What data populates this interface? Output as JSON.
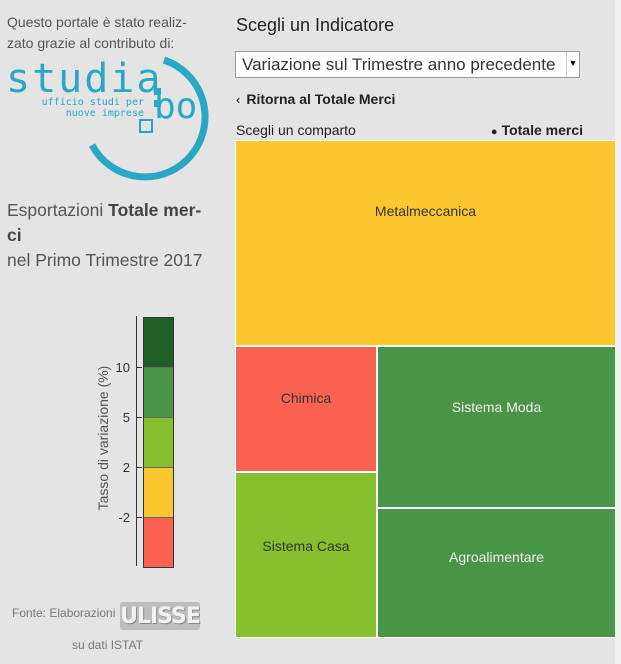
{
  "credit": {
    "line1": "Questo portale è stato realiz-",
    "line2": "zato grazie al contributo di:"
  },
  "logo": {
    "word": "studia",
    "suffix": "bo",
    "sub1": "ufficio studi per",
    "sub2": "nuove imprese",
    "color": "#2aa7c4"
  },
  "title": {
    "prefix": "Esportazioni ",
    "bold1": "Totale mer-",
    "bold2": "ci",
    "line3": "nel Primo Trimestre 2017"
  },
  "legend": {
    "axis_label": "Tasso di variazione (%)",
    "ticks": [
      "10",
      "5",
      "2",
      "-2"
    ],
    "colors": [
      "#1f5e24",
      "#4a9448",
      "#86c02e",
      "#fdc82f",
      "#fb6350"
    ]
  },
  "source": {
    "prefix": "Fonte: Elaborazioni",
    "brand": "ULISSE",
    "suffix": "su dati ISTAT"
  },
  "panel": {
    "title": "Scegli un Indicatore",
    "indicator_value": "Variazione sul Trimestre anno precedente",
    "back_label": "Ritorna al Totale Merci",
    "comparto_label": "Scegli un comparto",
    "current_comparto": "Totale merci"
  },
  "treemap": {
    "tiles": [
      {
        "label": "Metalmeccanica",
        "color": "#fdc82f",
        "text_color": "#333333"
      },
      {
        "label": "Chimica",
        "color": "#fb6350",
        "text_color": "#333333"
      },
      {
        "label": "Sistema Moda",
        "color": "#4a9448",
        "text_color": "#eeeeee"
      },
      {
        "label": "Sistema Casa",
        "color": "#86c02e",
        "text_color": "#333333"
      },
      {
        "label": "Agroalimentare",
        "color": "#4a9448",
        "text_color": "#eeeeee"
      }
    ]
  }
}
